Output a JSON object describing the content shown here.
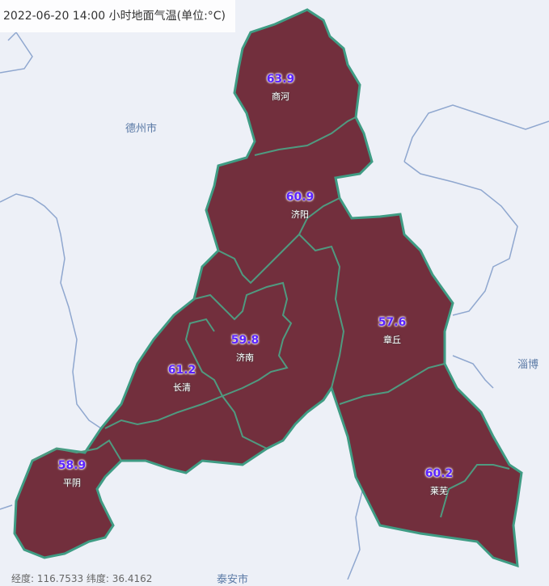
{
  "title": "2022-06-20 14:00 小时地面气温(单位:°C)",
  "colors": {
    "fill": "#722f3d",
    "border": "#3f9c84",
    "background": "#edf0f7",
    "value_text": "#5a22ff",
    "rivers": "#8fa7cf"
  },
  "counties": [
    {
      "name": "商河",
      "value": "63.9"
    },
    {
      "name": "济阳",
      "value": "60.9"
    },
    {
      "name": "济南",
      "value": "59.8"
    },
    {
      "name": "长清",
      "value": "61.2"
    },
    {
      "name": "章丘",
      "value": "57.6"
    },
    {
      "name": "平阴",
      "value": "58.9"
    },
    {
      "name": "莱芜",
      "value": "60.2"
    }
  ],
  "cities": [
    "德州市",
    "淄博",
    "泰安市"
  ],
  "coord_readout": "经度: 116.7533  纬度: 36.4162"
}
